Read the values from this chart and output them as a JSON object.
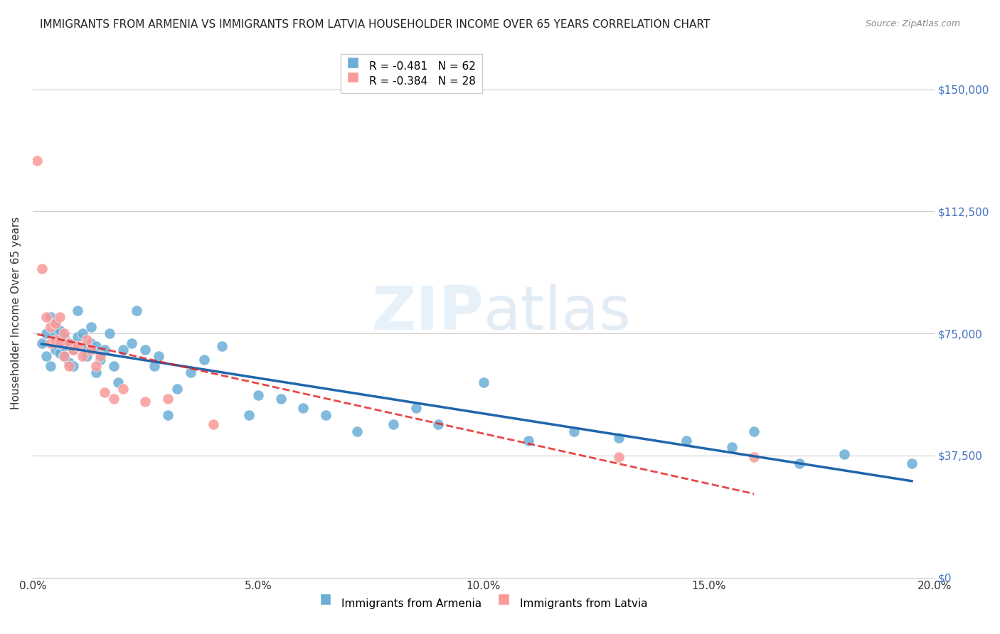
{
  "title": "IMMIGRANTS FROM ARMENIA VS IMMIGRANTS FROM LATVIA HOUSEHOLDER INCOME OVER 65 YEARS CORRELATION CHART",
  "source": "Source: ZipAtlas.com",
  "xlabel_ticks": [
    "0.0%",
    "5.0%",
    "10.0%",
    "15.0%",
    "20.0%"
  ],
  "xlabel_values": [
    0.0,
    0.05,
    0.1,
    0.15,
    0.2
  ],
  "ylabel": "Householder Income Over 65 years",
  "ylabel_ticks": [
    0,
    37500,
    75000,
    112500,
    150000
  ],
  "ylabel_labels": [
    "$0",
    "$37,500",
    "$75,000",
    "$112,500",
    "$150,000"
  ],
  "xlim": [
    0.0,
    0.2
  ],
  "ylim": [
    0,
    162500
  ],
  "armenia_R": -0.481,
  "armenia_N": 62,
  "latvia_R": -0.384,
  "latvia_N": 28,
  "armenia_color": "#6baed6",
  "latvia_color": "#fb9a99",
  "armenia_line_color": "#2166ac",
  "latvia_line_color": "#e31a1c",
  "watermark": "ZIPatlas",
  "armenia_x": [
    0.002,
    0.003,
    0.003,
    0.004,
    0.004,
    0.005,
    0.005,
    0.005,
    0.006,
    0.006,
    0.006,
    0.007,
    0.007,
    0.007,
    0.008,
    0.008,
    0.009,
    0.009,
    0.01,
    0.01,
    0.011,
    0.012,
    0.012,
    0.013,
    0.013,
    0.014,
    0.014,
    0.015,
    0.016,
    0.017,
    0.018,
    0.019,
    0.02,
    0.022,
    0.023,
    0.025,
    0.027,
    0.028,
    0.03,
    0.032,
    0.035,
    0.038,
    0.042,
    0.048,
    0.05,
    0.055,
    0.06,
    0.065,
    0.072,
    0.08,
    0.085,
    0.09,
    0.1,
    0.11,
    0.12,
    0.13,
    0.145,
    0.155,
    0.16,
    0.17,
    0.18,
    0.195
  ],
  "armenia_y": [
    72000,
    68000,
    75000,
    80000,
    65000,
    78000,
    70000,
    75000,
    69000,
    72000,
    76000,
    68000,
    71000,
    74000,
    66000,
    72000,
    70000,
    65000,
    82000,
    74000,
    75000,
    70000,
    68000,
    77000,
    72000,
    71000,
    63000,
    67000,
    70000,
    75000,
    65000,
    60000,
    70000,
    72000,
    82000,
    70000,
    65000,
    68000,
    50000,
    58000,
    63000,
    67000,
    71000,
    50000,
    56000,
    55000,
    52000,
    50000,
    45000,
    47000,
    52000,
    47000,
    60000,
    42000,
    45000,
    43000,
    42000,
    40000,
    45000,
    35000,
    38000,
    35000
  ],
  "latvia_x": [
    0.001,
    0.002,
    0.003,
    0.004,
    0.004,
    0.005,
    0.005,
    0.006,
    0.006,
    0.007,
    0.007,
    0.008,
    0.008,
    0.009,
    0.01,
    0.011,
    0.012,
    0.013,
    0.014,
    0.015,
    0.016,
    0.018,
    0.02,
    0.025,
    0.03,
    0.04,
    0.13,
    0.16
  ],
  "latvia_y": [
    128000,
    95000,
    80000,
    77000,
    72000,
    78000,
    73000,
    80000,
    72000,
    68000,
    75000,
    65000,
    72000,
    70000,
    71000,
    68000,
    73000,
    70000,
    65000,
    68000,
    57000,
    55000,
    58000,
    54000,
    55000,
    47000,
    37000,
    37000
  ]
}
